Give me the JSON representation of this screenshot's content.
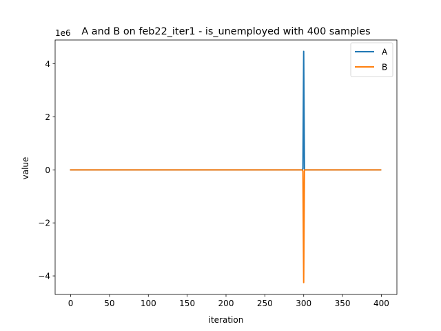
{
  "chart_data": {
    "type": "line",
    "title": "A and B on feb22_iter1 - is_unemployed with 400 samples",
    "xlabel": "iteration",
    "ylabel": "value",
    "y_offset_label": "1e6",
    "xlim": [
      -20,
      420
    ],
    "ylim": [
      -4.7,
      4.9
    ],
    "y_scale_factor": 1000000,
    "x_ticks": [
      0,
      50,
      100,
      150,
      200,
      250,
      300,
      350,
      400
    ],
    "y_ticks": [
      -4,
      -2,
      0,
      2,
      4
    ],
    "grid": false,
    "legend_position": "top-right",
    "series": [
      {
        "name": "A",
        "color": "#1f77b4",
        "x": [
          0,
          298,
          299,
          300,
          301,
          399
        ],
        "y": [
          0,
          0,
          0.05,
          4.47,
          0,
          0
        ]
      },
      {
        "name": "B",
        "color": "#ff7f0e",
        "x": [
          0,
          298,
          299,
          300,
          301,
          399
        ],
        "y": [
          0,
          0,
          -0.05,
          -4.25,
          0,
          0
        ]
      }
    ]
  }
}
